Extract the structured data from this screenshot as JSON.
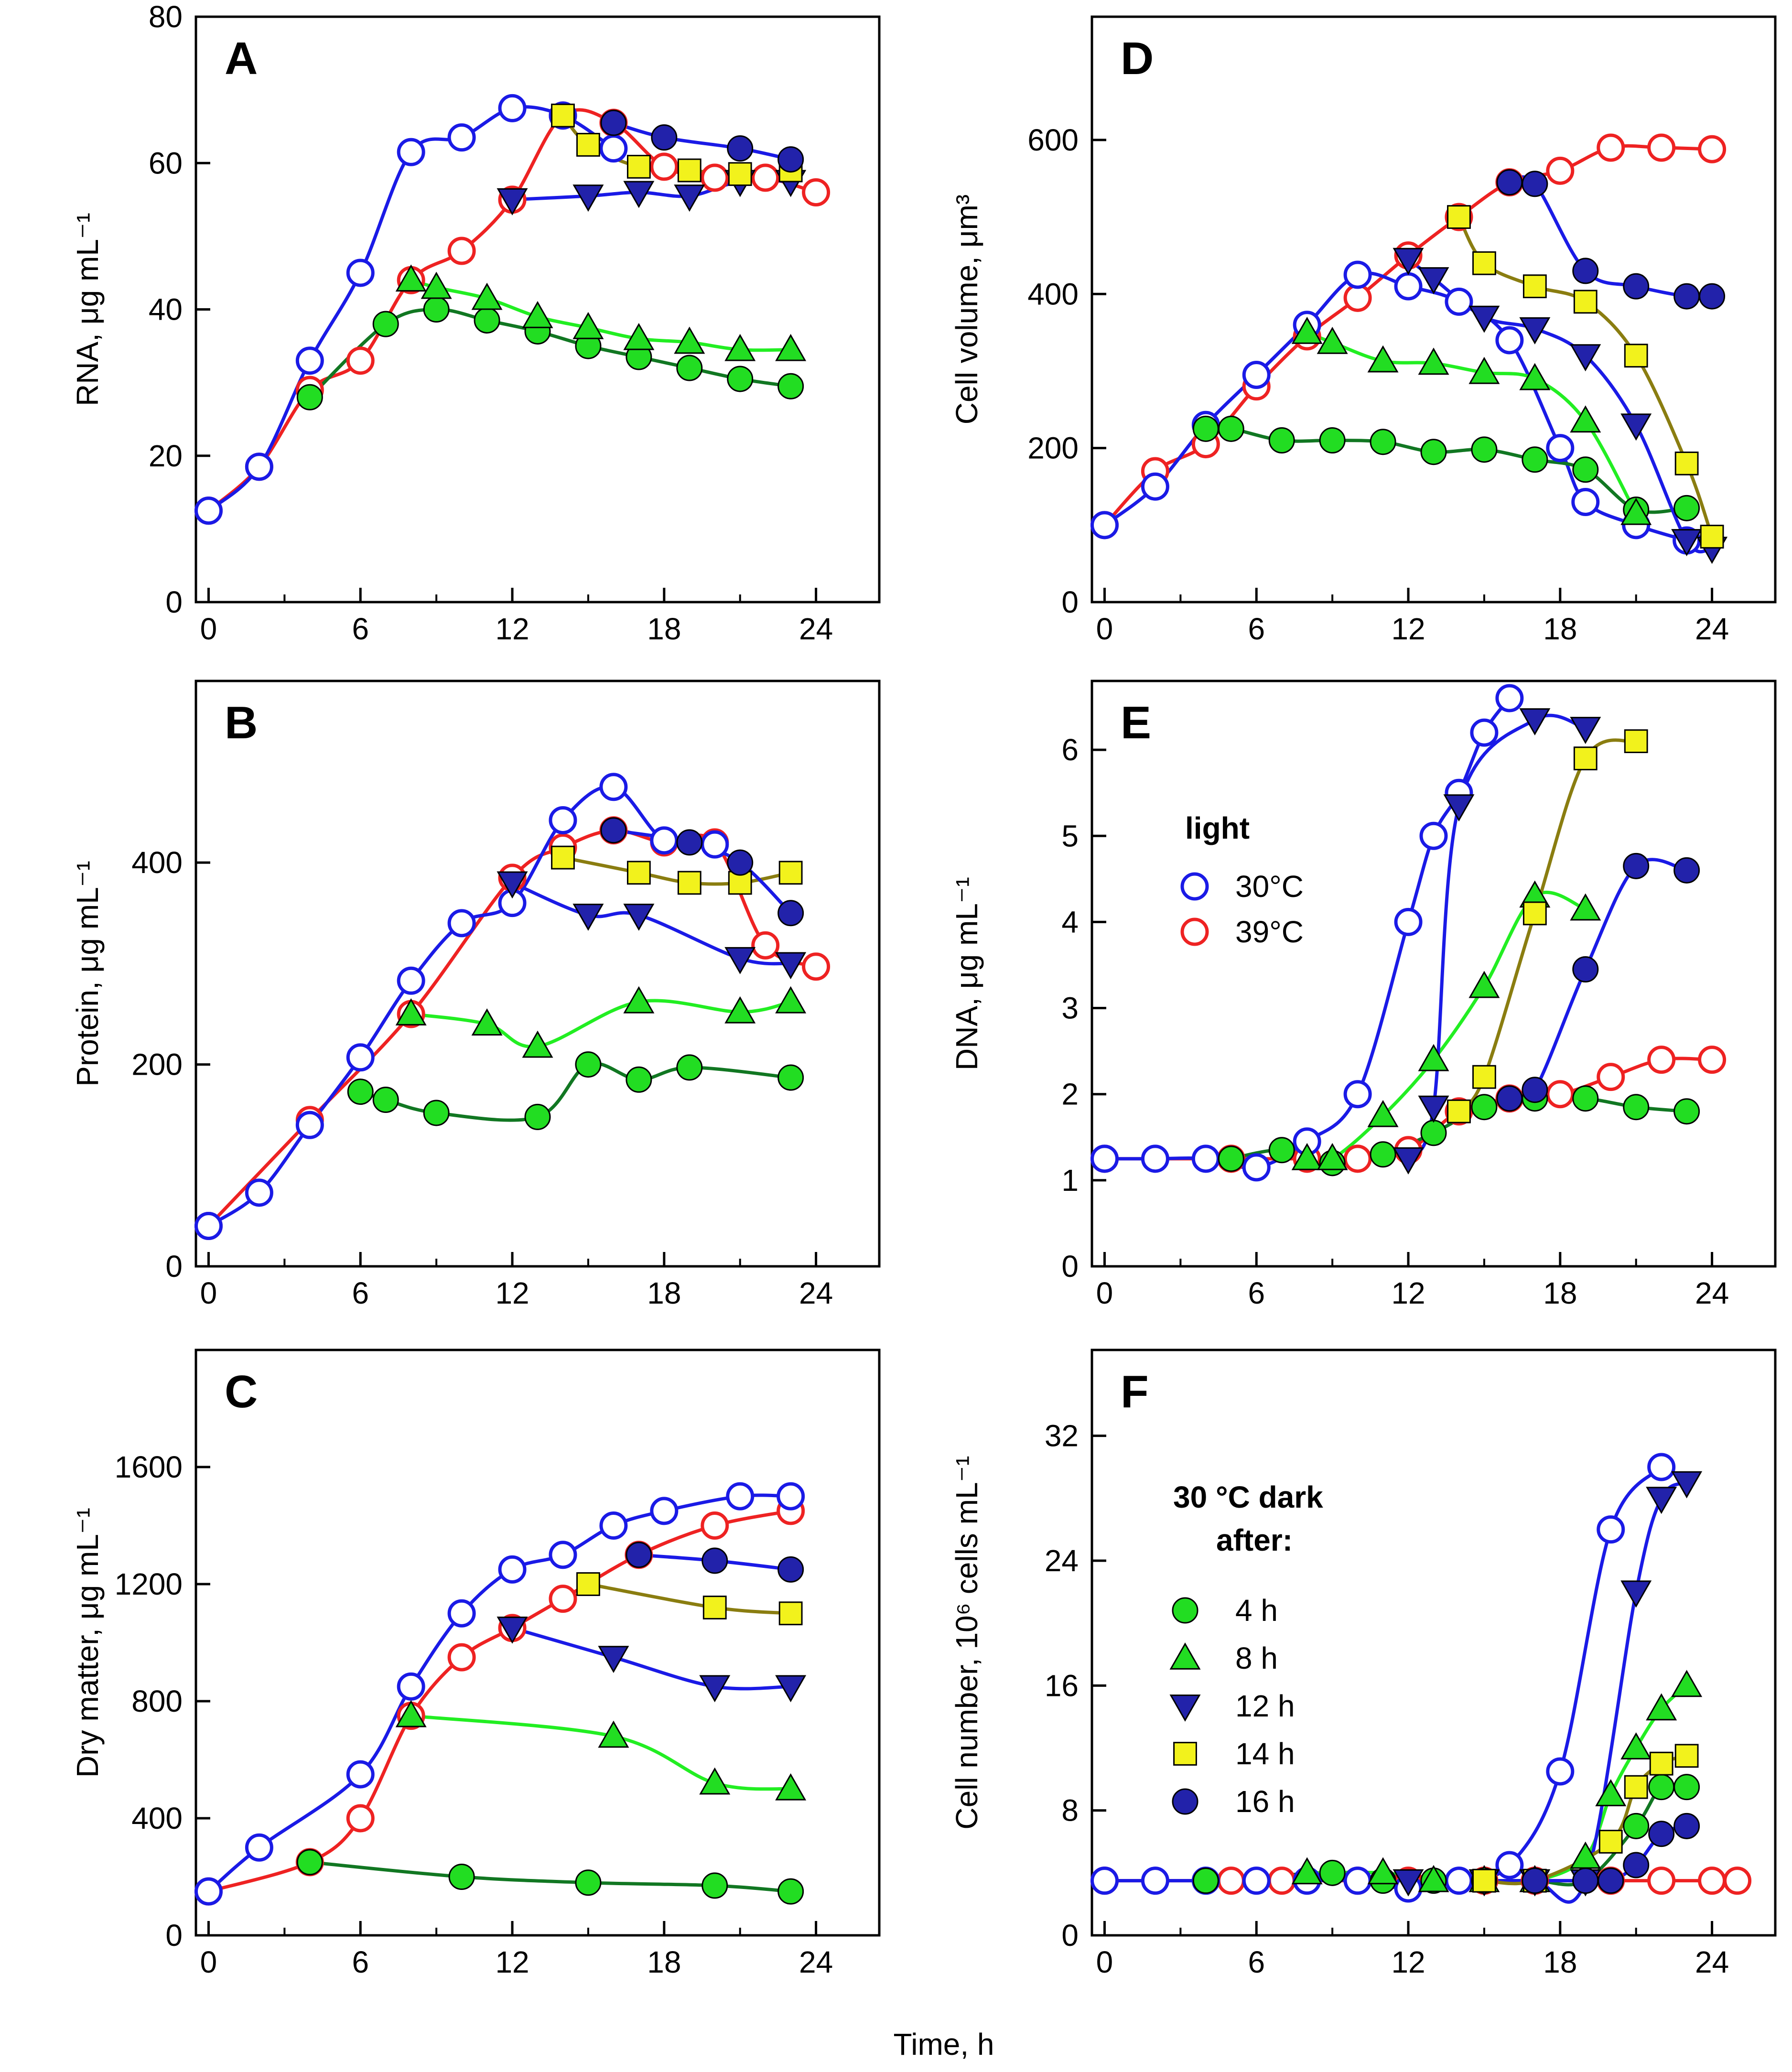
{
  "figure": {
    "xlabel_common": "Time, h"
  },
  "colors": {
    "blue": "#1a1ae6",
    "red": "#ee2222",
    "green_dark": "#117722",
    "green_light": "#22ee22",
    "olive": "#8a7d10",
    "marker_green": "#22dd22",
    "marker_navy": "#2222aa",
    "marker_yellow": "#f2f21c"
  },
  "legend_light": {
    "title": "light",
    "items": [
      {
        "label": "30°C",
        "series": "light30"
      },
      {
        "label": "39°C",
        "series": "light39"
      }
    ]
  },
  "legend_dark": {
    "title_line1": "30 °C dark",
    "title_line2": "after:",
    "items": [
      {
        "label": "4 h",
        "series": "dark4"
      },
      {
        "label": "8 h",
        "series": "dark8"
      },
      {
        "label": "12 h",
        "series": "dark12"
      },
      {
        "label": "14 h",
        "series": "dark14"
      },
      {
        "label": "16 h",
        "series": "dark16"
      }
    ]
  },
  "chart_data": [
    {
      "id": "A",
      "letter": "A",
      "type": "line",
      "ylabel": "RNA, μg mL⁻¹",
      "ylim": [
        0,
        80
      ],
      "yticks": [
        0,
        20,
        40,
        60,
        80
      ],
      "xlim": [
        -0.5,
        26.5
      ],
      "xticks": [
        0,
        6,
        12,
        18,
        24
      ],
      "series": [
        {
          "name": "light30",
          "x": [
            0,
            2,
            4,
            6,
            8,
            10,
            12,
            14,
            16
          ],
          "y": [
            12.5,
            18.5,
            33,
            45,
            61.5,
            63.5,
            67.5,
            66.5,
            62
          ]
        },
        {
          "name": "light39",
          "x": [
            0,
            2,
            4,
            6,
            8,
            10,
            12,
            14,
            16,
            18,
            20,
            22,
            24
          ],
          "y": [
            12.5,
            18.5,
            29,
            33,
            44,
            48,
            55,
            66.5,
            65.5,
            59.5,
            58,
            58,
            56
          ]
        },
        {
          "name": "dark4",
          "x": [
            4,
            7,
            9,
            11,
            13,
            15,
            17,
            19,
            21,
            23
          ],
          "y": [
            28,
            38,
            40,
            38.5,
            37,
            35,
            33.5,
            32,
            30.5,
            29.5
          ]
        },
        {
          "name": "dark8",
          "x": [
            8,
            9,
            11,
            13,
            15,
            17,
            19,
            21,
            23
          ],
          "y": [
            44,
            43,
            41.5,
            39,
            37.5,
            36,
            35.5,
            34.5,
            34.5
          ]
        },
        {
          "name": "dark12",
          "x": [
            12,
            15,
            17,
            19,
            21,
            23
          ],
          "y": [
            55,
            55.5,
            56,
            55.5,
            57.5,
            57.5
          ]
        },
        {
          "name": "dark14",
          "x": [
            14,
            15,
            17,
            19,
            21,
            23
          ],
          "y": [
            66.5,
            62.5,
            59.5,
            59,
            58.5,
            59
          ]
        },
        {
          "name": "dark16",
          "x": [
            16,
            18,
            21,
            23
          ],
          "y": [
            65.5,
            63.5,
            62,
            60.5
          ]
        }
      ]
    },
    {
      "id": "B",
      "letter": "B",
      "type": "line",
      "ylabel": "Protein, μg mL⁻¹",
      "ylim": [
        0,
        580
      ],
      "yticks": [
        0,
        200,
        400
      ],
      "xlim": [
        -0.5,
        26.5
      ],
      "xticks": [
        0,
        6,
        12,
        18,
        24
      ],
      "series": [
        {
          "name": "light30",
          "x": [
            0,
            2,
            4,
            6,
            8,
            10,
            12,
            14,
            16,
            18,
            20
          ],
          "y": [
            40,
            73,
            140,
            207,
            283,
            340,
            360,
            442,
            475,
            422,
            418
          ]
        },
        {
          "name": "light39",
          "x": [
            0,
            4,
            8,
            12,
            14,
            16,
            18,
            20,
            22,
            24
          ],
          "y": [
            40,
            145,
            250,
            385,
            415,
            432,
            420,
            420,
            318,
            297
          ]
        },
        {
          "name": "dark4",
          "x": [
            6,
            7,
            9,
            13,
            15,
            17,
            19,
            23
          ],
          "y": [
            173,
            165,
            152,
            148,
            200,
            185,
            197,
            187
          ]
        },
        {
          "name": "dark8",
          "x": [
            8,
            11,
            13,
            17,
            21,
            23
          ],
          "y": [
            250,
            240,
            218,
            262,
            252,
            262
          ]
        },
        {
          "name": "dark12",
          "x": [
            12,
            15,
            17,
            21,
            23
          ],
          "y": [
            380,
            348,
            348,
            305,
            300
          ]
        },
        {
          "name": "dark14",
          "x": [
            14,
            17,
            19,
            21,
            23
          ],
          "y": [
            405,
            390,
            380,
            380,
            390
          ]
        },
        {
          "name": "dark16",
          "x": [
            16,
            19,
            21,
            23
          ],
          "y": [
            432,
            420,
            400,
            350
          ]
        }
      ]
    },
    {
      "id": "C",
      "letter": "C",
      "type": "line",
      "ylabel": "Dry matter, μg mL⁻¹",
      "ylim": [
        0,
        2000
      ],
      "yticks": [
        0,
        400,
        800,
        1200,
        1600
      ],
      "xlim": [
        -0.5,
        26.5
      ],
      "xticks": [
        0,
        6,
        12,
        18,
        24
      ],
      "series": [
        {
          "name": "light30",
          "x": [
            0,
            2,
            6,
            8,
            10,
            12,
            14,
            16,
            18,
            21,
            23
          ],
          "y": [
            150,
            300,
            550,
            850,
            1100,
            1250,
            1300,
            1400,
            1450,
            1500,
            1500
          ]
        },
        {
          "name": "light39",
          "x": [
            0,
            4,
            6,
            8,
            10,
            12,
            14,
            17,
            20,
            23
          ],
          "y": [
            150,
            250,
            400,
            750,
            950,
            1050,
            1150,
            1300,
            1400,
            1450
          ]
        },
        {
          "name": "dark4",
          "x": [
            4,
            10,
            15,
            20,
            23
          ],
          "y": [
            250,
            200,
            180,
            170,
            150
          ]
        },
        {
          "name": "dark8",
          "x": [
            8,
            16,
            20,
            23
          ],
          "y": [
            750,
            680,
            520,
            500
          ]
        },
        {
          "name": "dark12",
          "x": [
            12,
            16,
            20,
            23
          ],
          "y": [
            1050,
            950,
            850,
            850
          ]
        },
        {
          "name": "dark14",
          "x": [
            15,
            20,
            23
          ],
          "y": [
            1200,
            1120,
            1100
          ]
        },
        {
          "name": "dark16",
          "x": [
            17,
            20,
            23
          ],
          "y": [
            1300,
            1280,
            1250
          ]
        }
      ]
    },
    {
      "id": "D",
      "letter": "D",
      "type": "line",
      "ylabel": "Cell volume, μm³",
      "ylim": [
        0,
        760
      ],
      "yticks": [
        0,
        200,
        400,
        600
      ],
      "xlim": [
        -0.5,
        26.5
      ],
      "xticks": [
        0,
        6,
        12,
        18,
        24
      ],
      "series": [
        {
          "name": "light30",
          "x": [
            0,
            2,
            4,
            6,
            8,
            10,
            12,
            14,
            16,
            18,
            19,
            21,
            23
          ],
          "y": [
            100,
            150,
            230,
            295,
            360,
            425,
            410,
            390,
            340,
            200,
            130,
            100,
            80
          ]
        },
        {
          "name": "light39",
          "x": [
            0,
            2,
            4,
            6,
            8,
            10,
            12,
            14,
            16,
            18,
            20,
            22,
            24
          ],
          "y": [
            100,
            170,
            205,
            280,
            345,
            395,
            450,
            500,
            545,
            560,
            590,
            590,
            588
          ]
        },
        {
          "name": "dark4",
          "x": [
            4,
            5,
            7,
            9,
            11,
            13,
            15,
            17,
            19,
            21,
            23
          ],
          "y": [
            225,
            225,
            210,
            210,
            208,
            195,
            198,
            185,
            172,
            120,
            122
          ]
        },
        {
          "name": "dark8",
          "x": [
            8,
            9,
            11,
            13,
            15,
            17,
            19,
            21
          ],
          "y": [
            350,
            337,
            313,
            310,
            298,
            290,
            235,
            115
          ]
        },
        {
          "name": "dark12",
          "x": [
            12,
            13,
            15,
            17,
            19,
            21,
            23,
            24
          ],
          "y": [
            445,
            420,
            370,
            355,
            320,
            230,
            80,
            70
          ]
        },
        {
          "name": "dark14",
          "x": [
            14,
            15,
            17,
            19,
            21,
            23,
            24
          ],
          "y": [
            500,
            440,
            410,
            390,
            320,
            180,
            85
          ]
        },
        {
          "name": "dark16",
          "x": [
            16,
            17,
            19,
            21,
            23,
            24
          ],
          "y": [
            545,
            543,
            430,
            410,
            397,
            397
          ]
        }
      ]
    },
    {
      "id": "E",
      "letter": "E",
      "type": "line",
      "ylabel": "DNA, μg mL⁻¹",
      "ylim": [
        0,
        6.8
      ],
      "yticks": [
        0,
        1,
        2,
        3,
        4,
        5,
        6
      ],
      "xlim": [
        -0.5,
        26.5
      ],
      "xticks": [
        0,
        6,
        12,
        18,
        24
      ],
      "series": [
        {
          "name": "light30",
          "x": [
            0,
            2,
            4,
            6,
            8,
            10,
            12,
            13,
            14,
            15,
            16
          ],
          "y": [
            1.25,
            1.25,
            1.25,
            1.15,
            1.45,
            2.0,
            4.0,
            5.0,
            5.5,
            6.2,
            6.6
          ]
        },
        {
          "name": "light39",
          "x": [
            0,
            5,
            8,
            10,
            12,
            14,
            16,
            18,
            20,
            22,
            24
          ],
          "y": [
            1.25,
            1.25,
            1.25,
            1.25,
            1.35,
            1.8,
            1.95,
            2.0,
            2.2,
            2.4,
            2.4
          ]
        },
        {
          "name": "dark4",
          "x": [
            5,
            7,
            9,
            11,
            13,
            15,
            17,
            19,
            21,
            23
          ],
          "y": [
            1.25,
            1.35,
            1.2,
            1.3,
            1.55,
            1.85,
            1.95,
            1.95,
            1.85,
            1.8
          ]
        },
        {
          "name": "dark8",
          "x": [
            8,
            9,
            11,
            13,
            15,
            17,
            19
          ],
          "y": [
            1.25,
            1.25,
            1.75,
            2.4,
            3.25,
            4.3,
            4.15
          ]
        },
        {
          "name": "dark12",
          "x": [
            12,
            13,
            14,
            17,
            19
          ],
          "y": [
            1.25,
            1.85,
            5.35,
            6.35,
            6.25
          ]
        },
        {
          "name": "dark14",
          "x": [
            14,
            15,
            17,
            19,
            21
          ],
          "y": [
            1.8,
            2.2,
            4.1,
            5.9,
            6.1
          ]
        },
        {
          "name": "dark16",
          "x": [
            16,
            17,
            19,
            21,
            23
          ],
          "y": [
            1.95,
            2.05,
            3.45,
            4.65,
            4.6
          ]
        }
      ]
    },
    {
      "id": "F",
      "letter": "F",
      "type": "line",
      "ylabel": "Cell number, 10⁶ cells mL⁻¹",
      "ylim": [
        0,
        37.5
      ],
      "yticks": [
        0,
        8,
        16,
        24,
        32
      ],
      "xlim": [
        -0.5,
        26.5
      ],
      "xticks": [
        0,
        6,
        12,
        18,
        24
      ],
      "series": [
        {
          "name": "light30",
          "x": [
            0,
            2,
            4,
            6,
            8,
            10,
            12,
            14,
            16,
            18,
            20,
            22
          ],
          "y": [
            3.5,
            3.5,
            3.5,
            3.5,
            3.5,
            3.5,
            3.0,
            3.5,
            4.5,
            10.5,
            26,
            30
          ]
        },
        {
          "name": "light39",
          "x": [
            0,
            5,
            7,
            10,
            12,
            15,
            17,
            20,
            22,
            24,
            25
          ],
          "y": [
            3.5,
            3.5,
            3.5,
            3.5,
            3.5,
            3.5,
            3.5,
            3.5,
            3.5,
            3.5,
            3.5
          ]
        },
        {
          "name": "dark4",
          "x": [
            4,
            9,
            11,
            13,
            15,
            17,
            19,
            21,
            22,
            23
          ],
          "y": [
            3.5,
            4.0,
            3.5,
            3.5,
            3.5,
            3.5,
            3.5,
            7.0,
            9.5,
            9.5
          ]
        },
        {
          "name": "dark8",
          "x": [
            8,
            11,
            13,
            15,
            17,
            19,
            20,
            21,
            22,
            23
          ],
          "y": [
            4.0,
            4.0,
            3.5,
            3.5,
            3.5,
            5.0,
            9.0,
            12.0,
            14.5,
            16.0
          ]
        },
        {
          "name": "dark12",
          "x": [
            12,
            15,
            17,
            19,
            21,
            22,
            23
          ],
          "y": [
            3.5,
            3.5,
            3.5,
            3.5,
            22.0,
            28.0,
            29.0
          ]
        },
        {
          "name": "dark14",
          "x": [
            15,
            17,
            20,
            21,
            22,
            23
          ],
          "y": [
            3.5,
            3.5,
            6.0,
            9.5,
            11.0,
            11.5
          ]
        },
        {
          "name": "dark16",
          "x": [
            17,
            19,
            20,
            21,
            22,
            23
          ],
          "y": [
            3.5,
            3.5,
            3.5,
            4.5,
            6.5,
            7.0
          ]
        }
      ]
    }
  ]
}
